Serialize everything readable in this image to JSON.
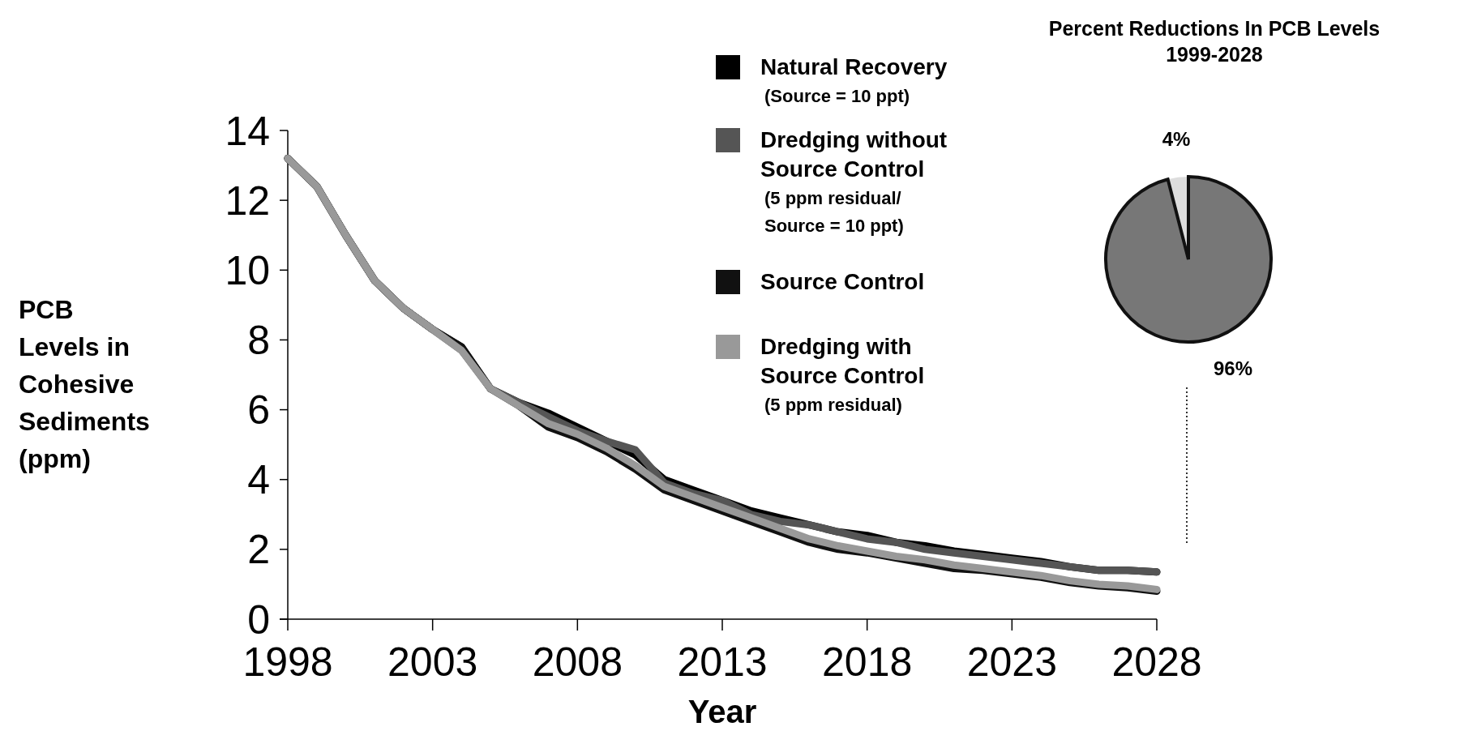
{
  "chart_data": [
    {
      "type": "line",
      "xlabel": "Year",
      "ylabel": "PCB\nLevels in\nCohesive\nSediments\n(ppm)",
      "x": [
        1998,
        1999,
        2000,
        2001,
        2002,
        2003,
        2004,
        2005,
        2006,
        2007,
        2008,
        2009,
        2010,
        2011,
        2012,
        2013,
        2014,
        2015,
        2016,
        2017,
        2018,
        2019,
        2020,
        2021,
        2022,
        2023,
        2024,
        2025,
        2026,
        2027,
        2028
      ],
      "xlim": [
        1998,
        2028
      ],
      "xticks": [
        1998,
        2003,
        2008,
        2013,
        2018,
        2023,
        2028
      ],
      "ylim": [
        0,
        14
      ],
      "yticks": [
        0,
        2,
        4,
        6,
        8,
        10,
        12,
        14
      ],
      "legend": "top right",
      "line_style": "solid",
      "marker": "none",
      "series": [
        {
          "name": "Natural Recovery\n(Source = 10 ppt)",
          "color": "#000000",
          "values": [
            13.2,
            12.4,
            11.0,
            9.7,
            8.9,
            8.3,
            7.8,
            6.6,
            6.2,
            5.9,
            5.5,
            5.1,
            4.7,
            4.0,
            3.7,
            3.4,
            3.1,
            2.9,
            2.7,
            2.5,
            2.4,
            2.2,
            2.1,
            1.95,
            1.85,
            1.75,
            1.65,
            1.5,
            1.4,
            1.4,
            1.35
          ]
        },
        {
          "name": "Dredging without\nSource Control\n(5 ppm residual/\nSource = 10 ppt)",
          "color": "#555555",
          "values": [
            13.2,
            12.4,
            11.0,
            9.7,
            8.9,
            8.3,
            7.7,
            6.6,
            6.2,
            5.8,
            5.4,
            5.1,
            4.85,
            3.9,
            3.6,
            3.4,
            3.0,
            2.8,
            2.7,
            2.5,
            2.3,
            2.2,
            2.0,
            1.9,
            1.8,
            1.7,
            1.6,
            1.5,
            1.4,
            1.4,
            1.35
          ]
        },
        {
          "name": "Source Control",
          "color": "#111111",
          "values": [
            13.2,
            12.4,
            11.0,
            9.7,
            8.9,
            8.3,
            7.8,
            6.6,
            6.1,
            5.5,
            5.2,
            4.8,
            4.3,
            3.7,
            3.4,
            3.1,
            2.8,
            2.5,
            2.2,
            2.0,
            1.9,
            1.75,
            1.6,
            1.45,
            1.4,
            1.3,
            1.2,
            1.05,
            0.95,
            0.9,
            0.8
          ]
        },
        {
          "name": "Dredging with\nSource Control\n(5 ppm residual)",
          "color": "#999999",
          "values": [
            13.2,
            12.4,
            11.0,
            9.7,
            8.9,
            8.3,
            7.7,
            6.6,
            6.1,
            5.6,
            5.3,
            4.9,
            4.4,
            3.8,
            3.5,
            3.2,
            2.9,
            2.6,
            2.3,
            2.1,
            1.95,
            1.8,
            1.7,
            1.55,
            1.45,
            1.35,
            1.25,
            1.1,
            1.0,
            0.95,
            0.85
          ]
        }
      ]
    },
    {
      "type": "pie",
      "title": "Percent Reductions In PCB Levels\n1999-2028",
      "categories": [
        null,
        null
      ],
      "values": [
        4,
        96
      ],
      "colors": [
        "#dddddd",
        "#777777"
      ],
      "value_labels": [
        "4%",
        "96%"
      ]
    }
  ]
}
